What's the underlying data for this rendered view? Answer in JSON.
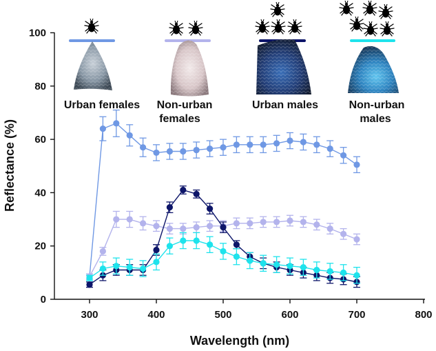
{
  "chart_data": {
    "type": "line",
    "xlabel": "Wavelength (nm)",
    "ylabel": "Reflectance (%)",
    "xlim": [
      250,
      800
    ],
    "ylim": [
      0,
      100
    ],
    "xticks": [
      300,
      400,
      500,
      600,
      700,
      800
    ],
    "yticks": [
      0,
      20,
      40,
      60,
      80,
      100
    ],
    "grid": false,
    "x": [
      300,
      320,
      340,
      360,
      380,
      400,
      420,
      440,
      460,
      480,
      500,
      520,
      540,
      560,
      580,
      600,
      620,
      640,
      660,
      680,
      700
    ],
    "series": [
      {
        "name": "Urban females",
        "color": "#6f98e4",
        "tick_count": 1,
        "values": [
          8.5,
          64,
          66,
          61.5,
          57,
          55,
          55.5,
          55.5,
          56,
          56.5,
          57,
          58,
          58,
          58,
          58.5,
          59.5,
          59,
          58,
          56.5,
          54,
          50.5
        ],
        "errors": [
          1,
          4.5,
          5,
          4,
          3.5,
          3,
          3,
          3,
          3,
          3,
          3,
          3,
          3,
          3,
          3,
          3,
          3,
          3,
          3,
          3,
          3
        ]
      },
      {
        "name": "Non-urban females",
        "color": "#b3b3ec",
        "tick_count": 2,
        "values": [
          8.5,
          18,
          30,
          30,
          28.5,
          27.5,
          26.5,
          26.5,
          27,
          27.5,
          27.5,
          28.5,
          28.5,
          29,
          29,
          29.5,
          29,
          28,
          26.5,
          24.5,
          22.5
        ],
        "errors": [
          1,
          1.5,
          3,
          3,
          2.5,
          2,
          2,
          2,
          2,
          2,
          2,
          2,
          2,
          2,
          2,
          2,
          2,
          2,
          2,
          2,
          2
        ]
      },
      {
        "name": "Urban males",
        "color": "#0d1569",
        "tick_count": 3,
        "values": [
          5.5,
          9,
          11,
          11,
          11,
          18.5,
          34.5,
          41,
          39.5,
          34,
          27,
          20.5,
          16,
          13.5,
          12,
          11,
          10,
          9,
          8,
          7.5,
          6.5
        ],
        "errors": [
          1,
          2,
          2,
          2,
          2,
          2,
          2,
          1.5,
          1.5,
          2,
          2,
          1.5,
          1.5,
          2,
          2,
          2,
          2,
          2,
          2,
          2,
          2
        ]
      },
      {
        "name": "Non-urban males",
        "color": "#1ee3ec",
        "tick_count": 6,
        "values": [
          8,
          11.5,
          12.5,
          12,
          11.5,
          14,
          20,
          22,
          22,
          20.5,
          18,
          16,
          14.5,
          13.5,
          13,
          12.5,
          12,
          11,
          10.5,
          10,
          9
        ],
        "errors": [
          1,
          2.5,
          3,
          3,
          3,
          3,
          3,
          3,
          3,
          3,
          3,
          3,
          3,
          3,
          3,
          3,
          3,
          3,
          3,
          3,
          3
        ]
      }
    ],
    "icons": {
      "tick": "tick-icon",
      "urban-females": "urban-female-tick-scutum-photo",
      "non-urban-females": "non-urban-female-tick-scutum-photo",
      "urban-males": "urban-male-tick-scutum-photo",
      "non-urban-males": "non-urban-male-tick-scutum-photo"
    },
    "labels": {
      "urban_females": [
        "Urban females"
      ],
      "non_urban_females": [
        "Non-urban",
        "females"
      ],
      "urban_males": [
        "Urban males"
      ],
      "non_urban_males": [
        "Non-urban",
        "males"
      ]
    }
  }
}
